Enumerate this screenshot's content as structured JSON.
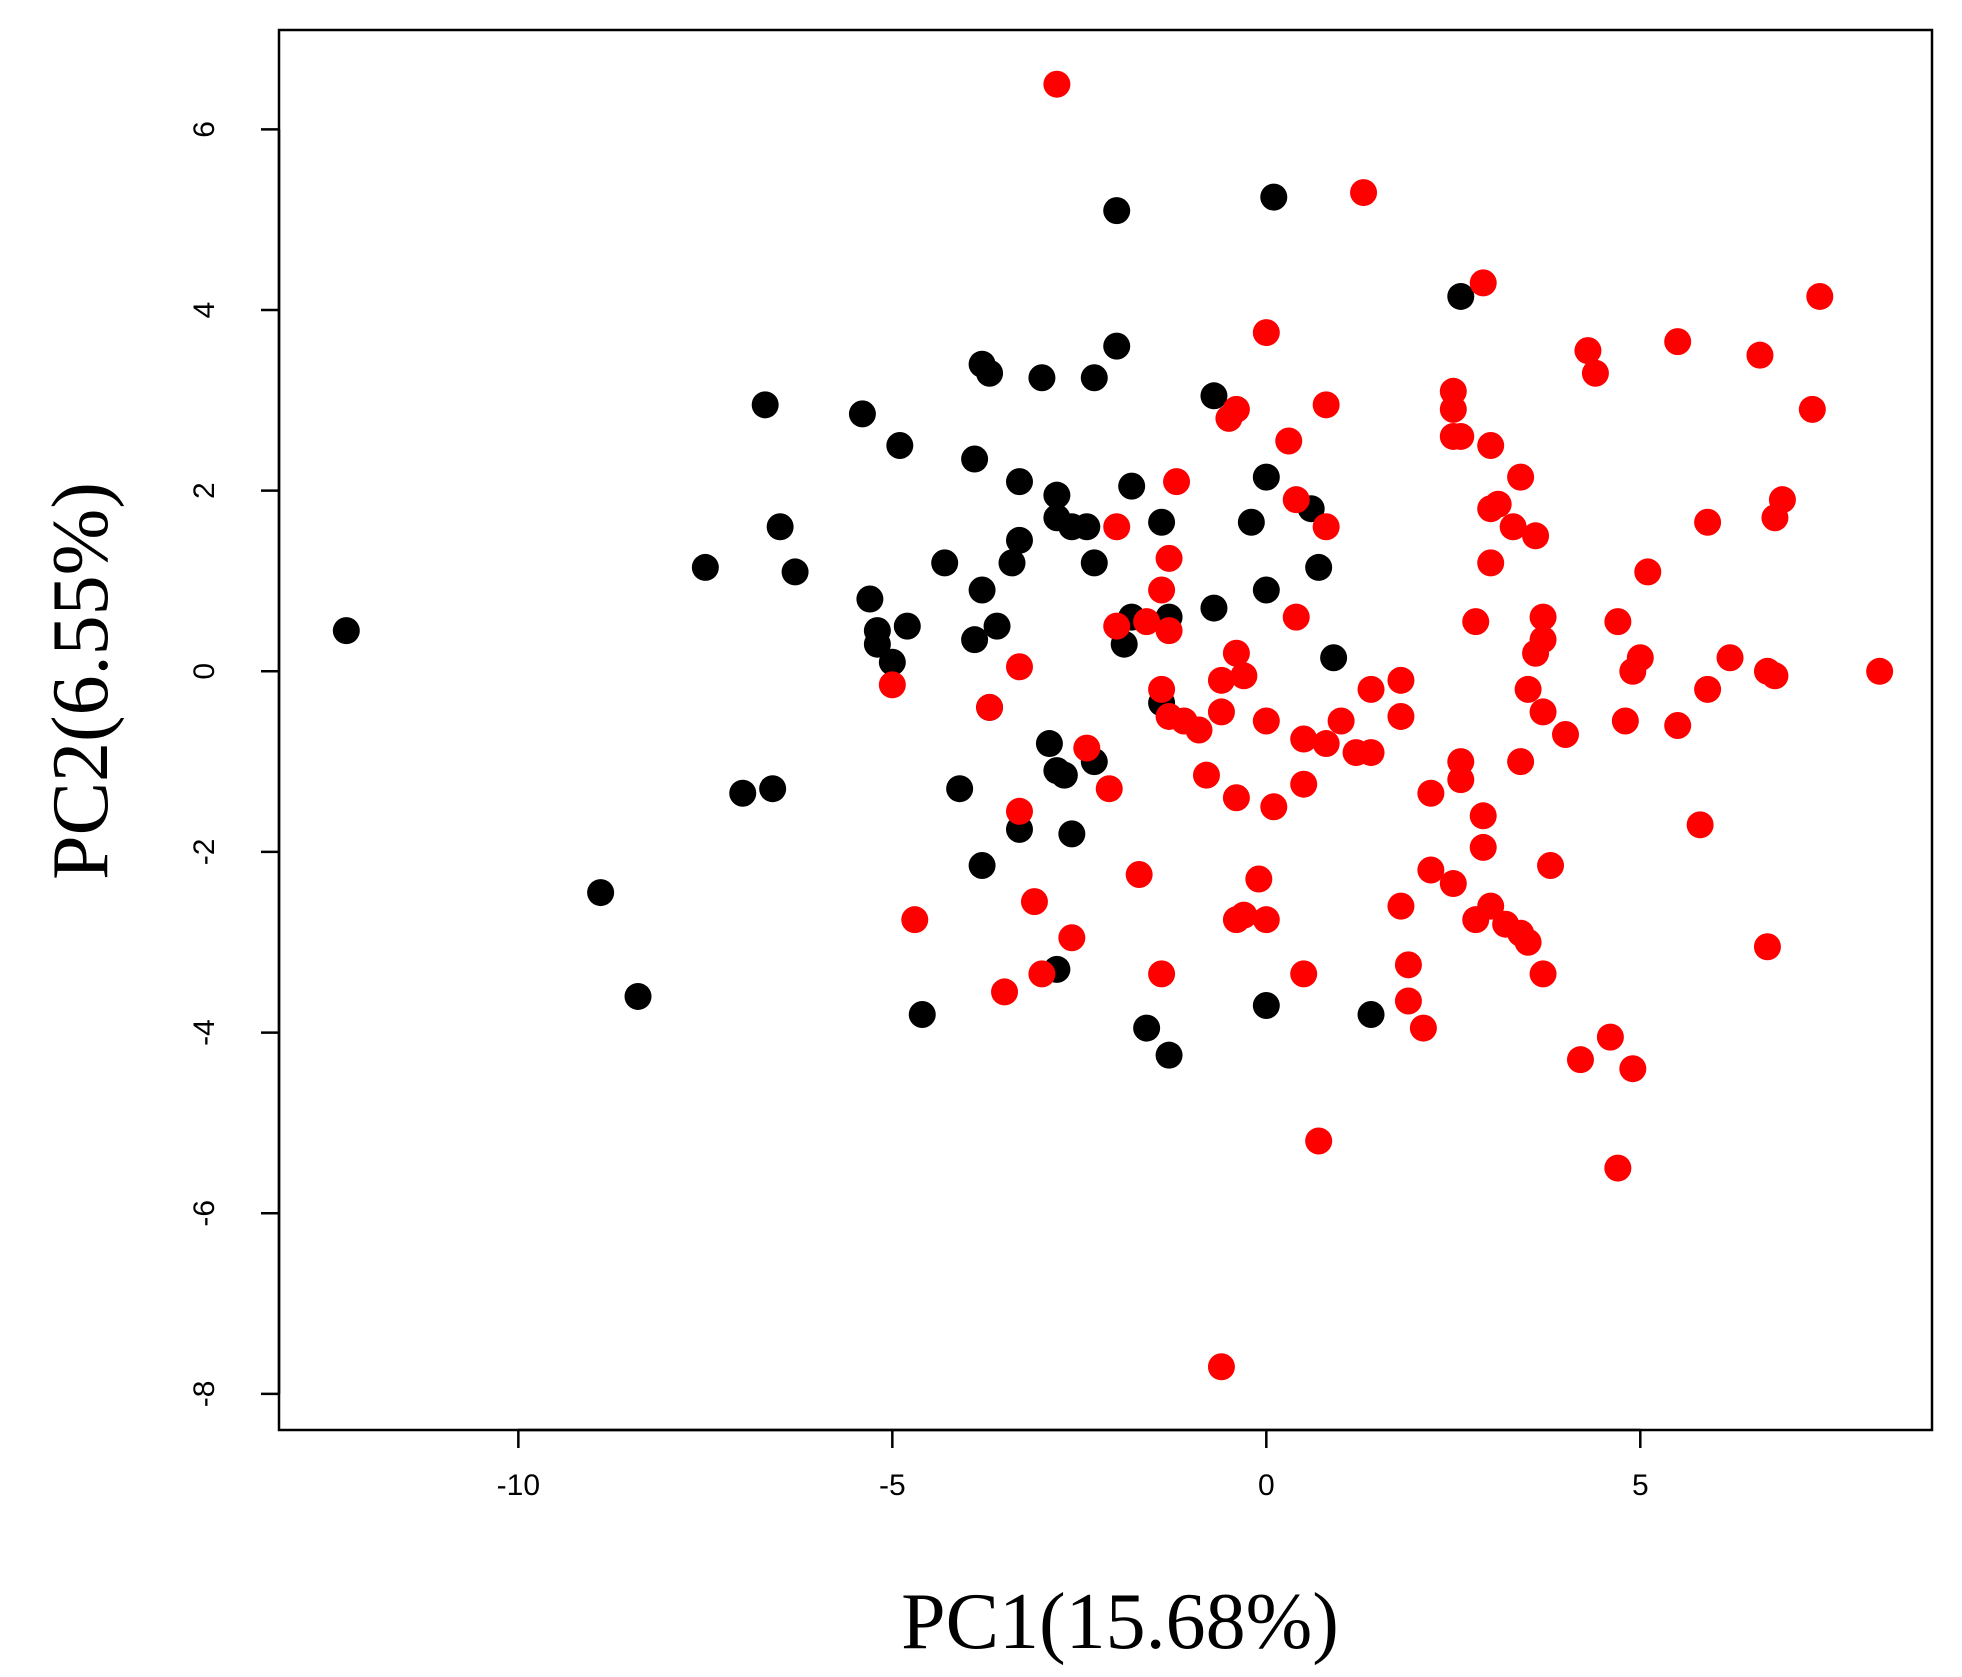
{
  "chart_data": {
    "type": "scatter",
    "xlabel": "PC1(15.68%)",
    "ylabel": "PC2(6.55%)",
    "xlim": [
      -13.2,
      8.9
    ],
    "ylim": [
      -8.4,
      7.1
    ],
    "x_ticks": [
      -10,
      -5,
      0,
      5
    ],
    "y_ticks": [
      -8,
      -6,
      -4,
      -2,
      0,
      2,
      4,
      6
    ],
    "x_tick_labels": [
      "-10",
      "-5",
      "0",
      "5"
    ],
    "y_tick_labels": [
      "-8",
      "-6",
      "-4",
      "-2",
      "0",
      "2",
      "4",
      "6"
    ],
    "grid": false,
    "legend": "none",
    "series": [
      {
        "color": "#000000",
        "points": [
          [
            -12.3,
            0.45
          ],
          [
            -8.9,
            -2.45
          ],
          [
            -8.4,
            -3.6
          ],
          [
            -7.5,
            1.15
          ],
          [
            -7.0,
            -1.35
          ],
          [
            -6.6,
            -1.3
          ],
          [
            -6.7,
            2.95
          ],
          [
            -6.5,
            1.6
          ],
          [
            -6.3,
            1.1
          ],
          [
            -5.4,
            2.85
          ],
          [
            -5.3,
            0.8
          ],
          [
            -5.2,
            0.45
          ],
          [
            -5.2,
            0.3
          ],
          [
            -5.0,
            0.1
          ],
          [
            -4.8,
            0.5
          ],
          [
            -4.9,
            2.5
          ],
          [
            -4.3,
            1.2
          ],
          [
            -4.1,
            -1.3
          ],
          [
            -3.9,
            0.35
          ],
          [
            -3.8,
            0.9
          ],
          [
            -3.9,
            2.35
          ],
          [
            -3.8,
            3.4
          ],
          [
            -3.7,
            3.3
          ],
          [
            -3.6,
            0.5
          ],
          [
            -3.7,
            -0.4
          ],
          [
            -3.4,
            1.2
          ],
          [
            -3.3,
            1.45
          ],
          [
            -3.3,
            2.1
          ],
          [
            -3.0,
            3.25
          ],
          [
            -2.8,
            1.95
          ],
          [
            -2.8,
            1.7
          ],
          [
            -2.6,
            1.6
          ],
          [
            -2.4,
            1.6
          ],
          [
            -2.3,
            1.2
          ],
          [
            -2.3,
            3.25
          ],
          [
            -2.0,
            3.6
          ],
          [
            -2.0,
            5.1
          ],
          [
            -1.8,
            2.05
          ],
          [
            -1.8,
            0.6
          ],
          [
            -1.9,
            0.3
          ],
          [
            -1.4,
            1.65
          ],
          [
            -1.3,
            0.6
          ],
          [
            -1.4,
            -0.35
          ],
          [
            -2.9,
            -0.8
          ],
          [
            -2.8,
            -1.1
          ],
          [
            -2.7,
            -1.15
          ],
          [
            -2.3,
            -1.0
          ],
          [
            -3.8,
            -2.15
          ],
          [
            -3.3,
            -1.75
          ],
          [
            -2.6,
            -1.8
          ],
          [
            -2.8,
            -3.3
          ],
          [
            -4.6,
            -3.8
          ],
          [
            -1.6,
            -3.95
          ],
          [
            -1.3,
            -4.25
          ],
          [
            -0.7,
            3.05
          ],
          [
            -0.2,
            1.65
          ],
          [
            0.0,
            2.15
          ],
          [
            -0.7,
            0.7
          ],
          [
            0.0,
            0.9
          ],
          [
            0.6,
            1.8
          ],
          [
            0.7,
            1.15
          ],
          [
            0.9,
            0.15
          ],
          [
            0.1,
            5.25
          ],
          [
            2.6,
            4.15
          ],
          [
            0.0,
            -3.7
          ],
          [
            1.4,
            -3.8
          ]
        ]
      },
      {
        "color": "#ff0000",
        "points": [
          [
            -2.8,
            6.5
          ],
          [
            1.3,
            5.3
          ],
          [
            0.0,
            3.75
          ],
          [
            2.9,
            4.3
          ],
          [
            7.4,
            4.15
          ],
          [
            4.3,
            3.55
          ],
          [
            4.4,
            3.3
          ],
          [
            5.5,
            3.65
          ],
          [
            6.6,
            3.5
          ],
          [
            7.3,
            2.9
          ],
          [
            2.5,
            3.1
          ],
          [
            2.5,
            2.9
          ],
          [
            2.5,
            2.6
          ],
          [
            2.6,
            2.6
          ],
          [
            3.0,
            2.5
          ],
          [
            0.8,
            2.95
          ],
          [
            0.3,
            2.55
          ],
          [
            -0.5,
            2.8
          ],
          [
            -0.4,
            2.9
          ],
          [
            -1.2,
            2.1
          ],
          [
            0.4,
            1.9
          ],
          [
            0.8,
            1.6
          ],
          [
            -2.0,
            1.6
          ],
          [
            -1.3,
            1.25
          ],
          [
            3.0,
            1.8
          ],
          [
            3.1,
            1.85
          ],
          [
            3.3,
            1.6
          ],
          [
            3.4,
            2.15
          ],
          [
            3.6,
            1.5
          ],
          [
            3.0,
            1.2
          ],
          [
            5.1,
            1.1
          ],
          [
            5.9,
            1.65
          ],
          [
            6.8,
            1.7
          ],
          [
            6.9,
            1.9
          ],
          [
            -1.4,
            0.9
          ],
          [
            -1.3,
            0.45
          ],
          [
            -1.6,
            0.55
          ],
          [
            -2.0,
            0.5
          ],
          [
            0.4,
            0.6
          ],
          [
            2.8,
            0.55
          ],
          [
            3.7,
            0.6
          ],
          [
            3.7,
            0.35
          ],
          [
            3.6,
            0.2
          ],
          [
            4.7,
            0.55
          ],
          [
            5.0,
            0.15
          ],
          [
            4.9,
            0.0
          ],
          [
            6.2,
            0.15
          ],
          [
            6.7,
            0.0
          ],
          [
            6.8,
            -0.05
          ],
          [
            8.2,
            0.0
          ],
          [
            -0.4,
            0.2
          ],
          [
            -3.3,
            0.05
          ],
          [
            -5.0,
            -0.15
          ],
          [
            -3.7,
            -0.4
          ],
          [
            -1.4,
            -0.2
          ],
          [
            -1.3,
            -0.5
          ],
          [
            -1.1,
            -0.55
          ],
          [
            -0.9,
            -0.65
          ],
          [
            -0.6,
            -0.45
          ],
          [
            -0.6,
            -0.1
          ],
          [
            -0.3,
            -0.05
          ],
          [
            0.0,
            -0.55
          ],
          [
            0.5,
            -0.75
          ],
          [
            0.8,
            -0.8
          ],
          [
            1.0,
            -0.55
          ],
          [
            1.2,
            -0.9
          ],
          [
            1.4,
            -0.9
          ],
          [
            1.4,
            -0.2
          ],
          [
            1.8,
            -0.1
          ],
          [
            1.8,
            -0.5
          ],
          [
            3.5,
            -0.2
          ],
          [
            3.7,
            -0.45
          ],
          [
            4.0,
            -0.7
          ],
          [
            4.8,
            -0.55
          ],
          [
            5.5,
            -0.6
          ],
          [
            5.9,
            -0.2
          ],
          [
            -2.4,
            -0.85
          ],
          [
            -2.1,
            -1.3
          ],
          [
            -0.8,
            -1.15
          ],
          [
            -0.4,
            -1.4
          ],
          [
            0.1,
            -1.5
          ],
          [
            0.5,
            -1.25
          ],
          [
            2.2,
            -1.35
          ],
          [
            2.6,
            -1.0
          ],
          [
            2.6,
            -1.2
          ],
          [
            2.9,
            -1.6
          ],
          [
            2.9,
            -1.95
          ],
          [
            3.4,
            -1.0
          ],
          [
            5.8,
            -1.7
          ],
          [
            -3.3,
            -1.55
          ],
          [
            -1.7,
            -2.25
          ],
          [
            -0.1,
            -2.3
          ],
          [
            -0.4,
            -2.75
          ],
          [
            -0.3,
            -2.7
          ],
          [
            0.0,
            -2.75
          ],
          [
            1.8,
            -2.6
          ],
          [
            2.2,
            -2.2
          ],
          [
            2.5,
            -2.35
          ],
          [
            2.8,
            -2.75
          ],
          [
            3.0,
            -2.6
          ],
          [
            3.2,
            -2.8
          ],
          [
            3.4,
            -2.9
          ],
          [
            3.5,
            -3.0
          ],
          [
            3.8,
            -2.15
          ],
          [
            -4.7,
            -2.75
          ],
          [
            -3.1,
            -2.55
          ],
          [
            -2.6,
            -2.95
          ],
          [
            -3.0,
            -3.35
          ],
          [
            -3.5,
            -3.55
          ],
          [
            -1.4,
            -3.35
          ],
          [
            0.5,
            -3.35
          ],
          [
            1.9,
            -3.25
          ],
          [
            1.9,
            -3.65
          ],
          [
            2.1,
            -3.95
          ],
          [
            3.7,
            -3.35
          ],
          [
            4.2,
            -4.3
          ],
          [
            4.6,
            -4.05
          ],
          [
            4.9,
            -4.4
          ],
          [
            6.7,
            -3.05
          ],
          [
            0.7,
            -5.2
          ],
          [
            4.7,
            -5.5
          ],
          [
            -0.6,
            -7.7
          ]
        ]
      }
    ]
  }
}
